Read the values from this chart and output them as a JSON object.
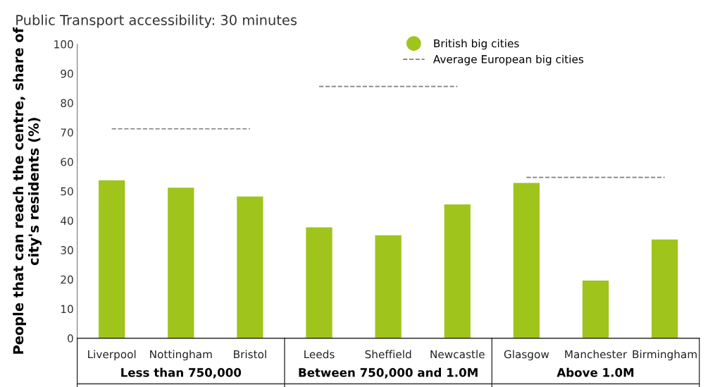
{
  "chart_data": {
    "type": "bar",
    "title": "Public Transport accessibility: 30 minutes",
    "ylabel": "People that can reach the centre, share of\ncity's residents (%)",
    "categories": [
      "Liverpool",
      "Nottingham",
      "Bristol",
      "Leeds",
      "Sheffield",
      "Newcastle",
      "Glasgow",
      "Manchester",
      "Birmingham"
    ],
    "series": [
      {
        "name": "British big cities",
        "color": "#9fc41c",
        "values": [
          53.7,
          51.2,
          48.2,
          37.7,
          35.0,
          45.5,
          52.8,
          19.6,
          33.6
        ]
      },
      {
        "name": "Average European big cities",
        "type": "line",
        "color": "#7f7f7f",
        "line_style": "dashed",
        "marker": "none",
        "values": [
          71.2,
          71.2,
          71.2,
          85.6,
          85.6,
          85.6,
          54.7,
          54.7,
          54.7
        ]
      }
    ],
    "annotations": [
      "Less than 750,000",
      "Between 750,000 and 1.0M",
      "Above 1.0M"
    ],
    "ylim": [
      0,
      100
    ],
    "yticks": [
      0,
      10,
      20,
      30,
      40,
      50,
      60,
      70,
      80,
      90,
      100
    ],
    "grid": false,
    "legend": "top right"
  }
}
